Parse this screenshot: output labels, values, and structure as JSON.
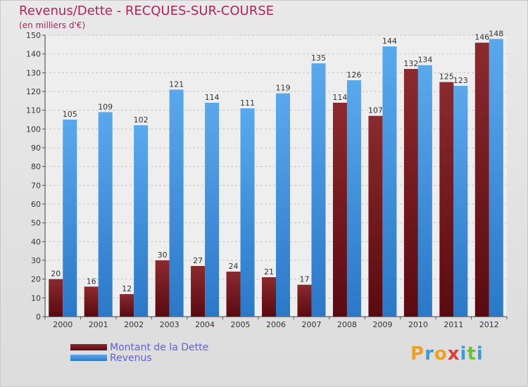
{
  "chart_data": {
    "type": "bar",
    "title": "Revenus/Dette - RECQUES-SUR-COURSE",
    "subtitle": "(en milliers d'€)",
    "categories": [
      "2000",
      "2001",
      "2002",
      "2003",
      "2004",
      "2005",
      "2006",
      "2007",
      "2008",
      "2009",
      "2010",
      "2011",
      "2012"
    ],
    "series": [
      {
        "name": "Montant de la Dette",
        "color": "#7a1a1f",
        "values": [
          20,
          16,
          12,
          30,
          27,
          24,
          21,
          17,
          114,
          107,
          132,
          125,
          146
        ]
      },
      {
        "name": "Revenus",
        "color": "#3a8fdc",
        "values": [
          105,
          109,
          102,
          121,
          114,
          111,
          119,
          135,
          126,
          144,
          134,
          123,
          148
        ]
      }
    ],
    "ylim": [
      0,
      150
    ],
    "yticks": [
      0,
      10,
      20,
      30,
      40,
      50,
      60,
      70,
      80,
      90,
      100,
      110,
      120,
      130,
      140,
      150
    ],
    "grid": true,
    "legend_position": "bottom-left"
  },
  "logo": {
    "text": "Proxiti",
    "letters": [
      "P",
      "r",
      "o",
      "x",
      "i",
      "t",
      "i"
    ],
    "colors": [
      "#f0a020",
      "#3a9be0",
      "#f0a020",
      "#e03a3a",
      "#3a9be0",
      "#6bbf3a",
      "#3a9be0"
    ]
  }
}
